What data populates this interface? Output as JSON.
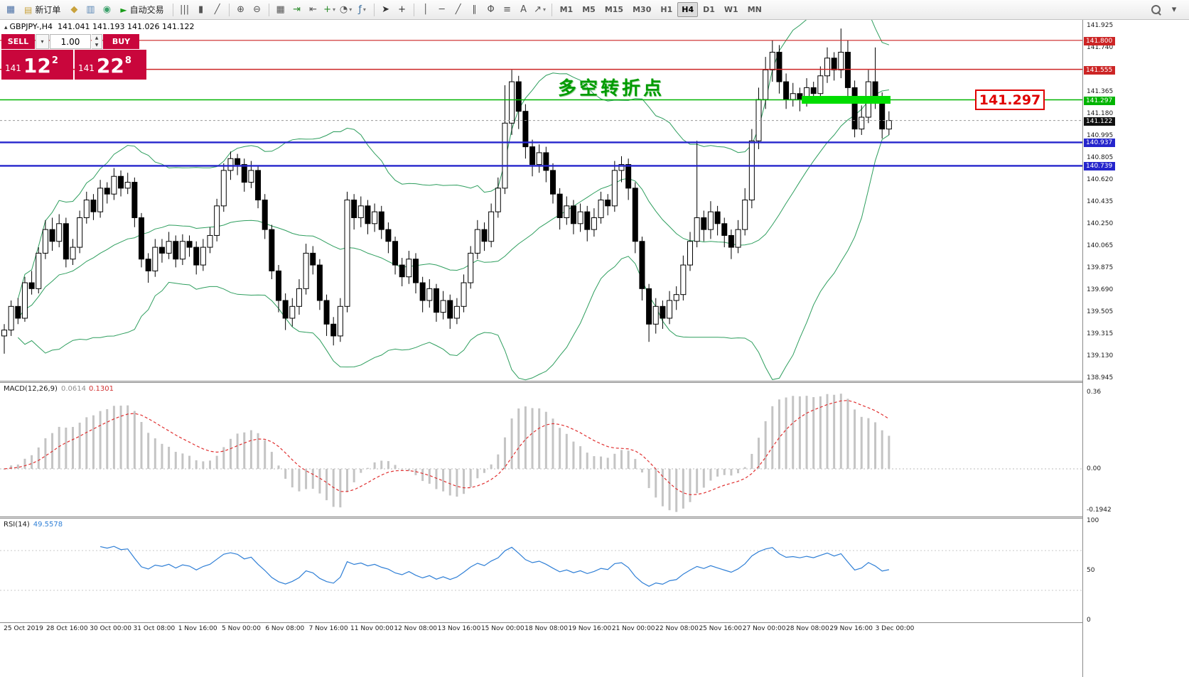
{
  "toolbar": {
    "items": [
      {
        "type": "icon",
        "name": "chart-window-icon",
        "glyph": "▦",
        "color": "#4a6fa5"
      },
      {
        "type": "button",
        "name": "new-order-button",
        "label": "新订单",
        "glyph": "▤",
        "color": "#c9a23c"
      },
      {
        "type": "icon",
        "name": "market-watch-icon",
        "glyph": "◆",
        "color": "#c9a23c"
      },
      {
        "type": "icon",
        "name": "data-window-icon",
        "glyph": "▥",
        "color": "#5b87b5"
      },
      {
        "type": "icon",
        "name": "strategy-tester-icon",
        "glyph": "◉",
        "color": "#3aa06a"
      },
      {
        "type": "button",
        "name": "autotrading-button",
        "label": "自动交易",
        "glyph": "►",
        "color": "#1a9c1a"
      },
      {
        "type": "sep"
      },
      {
        "type": "icon",
        "name": "bar-chart-icon",
        "glyph": "|||",
        "color": "#555555"
      },
      {
        "type": "icon",
        "name": "candlestick-chart-icon",
        "glyph": "▮",
        "color": "#555555"
      },
      {
        "type": "icon",
        "name": "line-chart-icon",
        "glyph": "╱",
        "color": "#555555"
      },
      {
        "type": "sep"
      },
      {
        "type": "icon",
        "name": "zoom-in-icon",
        "glyph": "⊕",
        "color": "#555555"
      },
      {
        "type": "icon",
        "name": "zoom-out-icon",
        "glyph": "⊖",
        "color": "#555555"
      },
      {
        "type": "sep"
      },
      {
        "type": "icon",
        "name": "tile-windows-icon",
        "glyph": "▦",
        "color": "#555555"
      },
      {
        "type": "icon",
        "name": "auto-scroll-icon",
        "glyph": "⇥",
        "color": "#2a8a2a"
      },
      {
        "type": "icon",
        "name": "chart-shift-icon",
        "glyph": "⇤",
        "color": "#555555"
      },
      {
        "type": "icon",
        "name": "new-chart-icon",
        "glyph": "+",
        "color": "#2a8a2a",
        "caret": true
      },
      {
        "type": "icon",
        "name": "profiles-icon",
        "glyph": "◔",
        "color": "#555555",
        "caret": true
      },
      {
        "type": "icon",
        "name": "indicators-icon",
        "glyph": "ƒ",
        "color": "#3a6fa0",
        "caret": true
      },
      {
        "type": "sep"
      },
      {
        "type": "icon",
        "name": "cursor-icon",
        "glyph": "➤",
        "color": "#333333"
      },
      {
        "type": "icon",
        "name": "crosshair-icon",
        "glyph": "+",
        "color": "#333333"
      },
      {
        "type": "sep"
      },
      {
        "type": "icon",
        "name": "vertical-line-icon",
        "glyph": "│",
        "color": "#555555"
      },
      {
        "type": "icon",
        "name": "horizontal-line-icon",
        "glyph": "─",
        "color": "#555555"
      },
      {
        "type": "icon",
        "name": "trendline-icon",
        "glyph": "╱",
        "color": "#555555"
      },
      {
        "type": "icon",
        "name": "channel-icon",
        "glyph": "∥",
        "color": "#555555"
      },
      {
        "type": "icon",
        "name": "fibonacci-icon",
        "glyph": "Φ",
        "color": "#555555"
      },
      {
        "type": "icon",
        "name": "shapes-icon",
        "glyph": "≡",
        "color": "#555555"
      },
      {
        "type": "icon",
        "name": "text-icon",
        "glyph": "A",
        "color": "#555555"
      },
      {
        "type": "icon",
        "name": "arrow-tools-icon",
        "glyph": "↗",
        "color": "#555555",
        "caret": true
      },
      {
        "type": "sep"
      },
      {
        "type": "tf",
        "name": "tf-m1",
        "label": "M1"
      },
      {
        "type": "tf",
        "name": "tf-m5",
        "label": "M5"
      },
      {
        "type": "tf",
        "name": "tf-m15",
        "label": "M15"
      },
      {
        "type": "tf",
        "name": "tf-m30",
        "label": "M30"
      },
      {
        "type": "tf",
        "name": "tf-h1",
        "label": "H1"
      },
      {
        "type": "tf",
        "name": "tf-h4",
        "label": "H4",
        "active": true
      },
      {
        "type": "tf",
        "name": "tf-d1",
        "label": "D1"
      },
      {
        "type": "tf",
        "name": "tf-w1",
        "label": "W1"
      },
      {
        "type": "tf",
        "name": "tf-mn",
        "label": "MN"
      }
    ],
    "right_items": [
      {
        "type": "icon",
        "name": "search-icon",
        "glyph": "",
        "css": "mag"
      },
      {
        "type": "icon",
        "name": "toolbar-overflow-icon",
        "glyph": "▾",
        "color": "#555555"
      }
    ]
  },
  "chart": {
    "symbol_icon": "▴",
    "title": "GBPJPY-,H4",
    "ohlc": "141.041 141.193 141.026 141.122"
  },
  "trade": {
    "sell_label": "SELL",
    "buy_label": "BUY",
    "volume": "1.00",
    "sell_caret": "▾",
    "stepper_up": "▲",
    "stepper_down": "▼",
    "sell_price": {
      "prefix": "141",
      "main": "12",
      "sup": "2"
    },
    "buy_price": {
      "prefix": "141",
      "main": "22",
      "sup": "8"
    }
  },
  "annotations": {
    "turning_point": "多空转折点",
    "price_box": "141.297"
  },
  "chart_data": {
    "type": "candlestick",
    "symbol": "GBPJPY-",
    "timeframe": "H4",
    "current_price": 141.122,
    "y_axis_ticks": [
      "141.925",
      "141.740",
      "141.555",
      "141.365",
      "141.180",
      "140.995",
      "140.805",
      "140.620",
      "140.435",
      "140.250",
      "140.065",
      "139.875",
      "139.690",
      "139.505",
      "139.315",
      "139.130",
      "138.945"
    ],
    "price_tags": [
      {
        "text": "141.800",
        "color": "#cc2525"
      },
      {
        "text": "141.555",
        "color": "#cc2525"
      },
      {
        "text": "141.297",
        "color": "#00b400"
      },
      {
        "text": "141.122",
        "color": "#101010"
      },
      {
        "text": "140.937",
        "color": "#2525cc"
      },
      {
        "text": "140.739",
        "color": "#2525cc"
      }
    ],
    "hlines": [
      {
        "price": 141.8,
        "color": "#cc2525",
        "width": 1.2
      },
      {
        "price": 141.555,
        "color": "#cc2525",
        "width": 1.5
      },
      {
        "price": 141.297,
        "color": "#00b400",
        "width": 1.5
      },
      {
        "price": 140.937,
        "color": "#2525cc",
        "width": 2.4
      },
      {
        "price": 140.739,
        "color": "#2525cc",
        "width": 2.4
      }
    ],
    "highlight_band": {
      "price": 141.297,
      "from_frac": 0.7407,
      "to_frac": 0.8227,
      "color": "#00dd00",
      "thickness": 11
    },
    "x_axis_labels": [
      "25 Oct 2019",
      "28 Oct 16:00",
      "30 Oct 00:00",
      "31 Oct 08:00",
      "1 Nov 16:00",
      "5 Nov 00:00",
      "6 Nov 08:00",
      "7 Nov 16:00",
      "11 Nov 00:00",
      "12 Nov 08:00",
      "13 Nov 16:00",
      "15 Nov 00:00",
      "18 Nov 08:00",
      "19 Nov 16:00",
      "21 Nov 00:00",
      "22 Nov 08:00",
      "25 Nov 16:00",
      "27 Nov 00:00",
      "28 Nov 08:00",
      "29 Nov 16:00",
      "3 Dec 00:00"
    ],
    "indicators": {
      "bollinger": {
        "period": 20,
        "deviation": 2,
        "color": "#2e9e5e"
      },
      "macd": {
        "label": "MACD(12,26,9)",
        "main": "0.0614",
        "signal": "0.1301",
        "axis": [
          "0.36",
          "0.00",
          "-0.1942"
        ],
        "histogram_color": "#c4c4c4",
        "signal_color": "#e03030"
      },
      "rsi": {
        "label": "RSI(14)",
        "value": "49.5578",
        "axis": [
          "100",
          "50",
          "0"
        ],
        "line_color": "#2f7fd6"
      }
    },
    "candles": [
      [
        139.3,
        139.4,
        139.15,
        139.35
      ],
      [
        139.35,
        139.6,
        139.3,
        139.55
      ],
      [
        139.55,
        139.62,
        139.4,
        139.45
      ],
      [
        139.45,
        139.8,
        139.42,
        139.75
      ],
      [
        139.75,
        139.85,
        139.65,
        139.7
      ],
      [
        139.7,
        140.05,
        139.66,
        140.0
      ],
      [
        140.0,
        140.28,
        139.95,
        140.2
      ],
      [
        140.2,
        140.3,
        140.02,
        140.1
      ],
      [
        140.1,
        140.33,
        140.05,
        140.25
      ],
      [
        140.25,
        140.3,
        139.88,
        139.95
      ],
      [
        139.95,
        140.12,
        139.9,
        140.05
      ],
      [
        140.05,
        140.36,
        140.0,
        140.3
      ],
      [
        140.3,
        140.52,
        140.25,
        140.45
      ],
      [
        140.45,
        140.5,
        140.28,
        140.35
      ],
      [
        140.35,
        140.62,
        140.3,
        140.55
      ],
      [
        140.55,
        140.6,
        140.42,
        140.5
      ],
      [
        140.5,
        140.72,
        140.45,
        140.65
      ],
      [
        140.65,
        140.7,
        140.48,
        140.55
      ],
      [
        140.55,
        140.68,
        140.5,
        140.6
      ],
      [
        140.6,
        140.64,
        140.22,
        140.3
      ],
      [
        140.3,
        140.34,
        139.88,
        139.95
      ],
      [
        139.95,
        140.0,
        139.75,
        139.85
      ],
      [
        139.85,
        140.12,
        139.8,
        140.05
      ],
      [
        140.05,
        140.12,
        139.92,
        140.0
      ],
      [
        140.0,
        140.18,
        139.95,
        140.1
      ],
      [
        140.1,
        140.15,
        139.88,
        139.95
      ],
      [
        139.95,
        140.16,
        139.9,
        140.1
      ],
      [
        140.1,
        140.15,
        139.97,
        140.05
      ],
      [
        140.05,
        140.1,
        139.82,
        139.9
      ],
      [
        139.9,
        140.12,
        139.85,
        140.05
      ],
      [
        140.05,
        140.22,
        140.0,
        140.15
      ],
      [
        140.15,
        140.46,
        140.1,
        140.4
      ],
      [
        140.4,
        140.76,
        140.35,
        140.7
      ],
      [
        140.7,
        140.86,
        140.62,
        140.8
      ],
      [
        140.8,
        140.84,
        140.66,
        140.75
      ],
      [
        140.75,
        140.8,
        140.52,
        140.6
      ],
      [
        140.6,
        140.78,
        140.55,
        140.7
      ],
      [
        140.7,
        140.74,
        140.38,
        140.45
      ],
      [
        140.45,
        140.5,
        140.12,
        140.2
      ],
      [
        140.2,
        140.24,
        139.78,
        139.85
      ],
      [
        139.85,
        139.9,
        139.5,
        139.6
      ],
      [
        139.6,
        139.66,
        139.35,
        139.45
      ],
      [
        139.45,
        139.62,
        139.38,
        139.55
      ],
      [
        139.55,
        139.78,
        139.48,
        139.7
      ],
      [
        139.7,
        140.08,
        139.65,
        140.0
      ],
      [
        140.0,
        140.06,
        139.82,
        139.9
      ],
      [
        139.9,
        139.95,
        139.52,
        139.6
      ],
      [
        139.6,
        139.65,
        139.3,
        139.4
      ],
      [
        139.4,
        139.46,
        139.22,
        139.3
      ],
      [
        139.3,
        139.62,
        139.25,
        139.55
      ],
      [
        139.55,
        140.52,
        139.5,
        140.45
      ],
      [
        140.45,
        140.5,
        140.2,
        140.3
      ],
      [
        140.3,
        140.48,
        140.22,
        140.4
      ],
      [
        140.4,
        140.45,
        140.16,
        140.25
      ],
      [
        140.25,
        140.42,
        140.18,
        140.35
      ],
      [
        140.35,
        140.4,
        140.12,
        140.2
      ],
      [
        140.2,
        140.26,
        140.0,
        140.1
      ],
      [
        140.1,
        140.14,
        139.82,
        139.9
      ],
      [
        139.9,
        139.96,
        139.72,
        139.8
      ],
      [
        139.8,
        140.02,
        139.74,
        139.95
      ],
      [
        139.95,
        140.0,
        139.66,
        139.75
      ],
      [
        139.75,
        139.8,
        139.5,
        139.6
      ],
      [
        139.6,
        139.78,
        139.54,
        139.7
      ],
      [
        139.7,
        139.74,
        139.42,
        139.5
      ],
      [
        139.5,
        139.68,
        139.44,
        139.6
      ],
      [
        139.6,
        139.65,
        139.36,
        139.45
      ],
      [
        139.45,
        139.62,
        139.4,
        139.55
      ],
      [
        139.55,
        139.82,
        139.5,
        139.75
      ],
      [
        139.75,
        140.06,
        139.7,
        140.0
      ],
      [
        140.0,
        140.28,
        139.95,
        140.2
      ],
      [
        140.2,
        140.26,
        140.02,
        140.1
      ],
      [
        140.1,
        140.42,
        140.05,
        140.35
      ],
      [
        140.35,
        140.64,
        140.3,
        140.55
      ],
      [
        140.55,
        141.42,
        140.5,
        141.1
      ],
      [
        141.1,
        141.55,
        141.0,
        141.45
      ],
      [
        141.45,
        141.5,
        141.05,
        141.2
      ],
      [
        141.2,
        141.26,
        140.8,
        140.9
      ],
      [
        140.9,
        140.96,
        140.65,
        140.75
      ],
      [
        140.75,
        140.92,
        140.68,
        140.85
      ],
      [
        140.85,
        140.9,
        140.6,
        140.7
      ],
      [
        140.7,
        140.76,
        140.42,
        140.5
      ],
      [
        140.5,
        140.55,
        140.2,
        140.3
      ],
      [
        140.3,
        140.48,
        140.24,
        140.4
      ],
      [
        140.4,
        140.45,
        140.16,
        140.25
      ],
      [
        140.25,
        140.42,
        140.18,
        140.35
      ],
      [
        140.35,
        140.4,
        140.1,
        140.2
      ],
      [
        140.2,
        140.38,
        140.14,
        140.3
      ],
      [
        140.3,
        140.52,
        140.25,
        140.45
      ],
      [
        140.45,
        140.5,
        140.32,
        140.4
      ],
      [
        140.4,
        140.78,
        140.35,
        140.7
      ],
      [
        140.7,
        140.82,
        140.6,
        140.75
      ],
      [
        140.75,
        140.8,
        140.45,
        140.55
      ],
      [
        140.55,
        140.6,
        140.0,
        140.1
      ],
      [
        140.1,
        140.14,
        139.6,
        139.7
      ],
      [
        139.7,
        139.74,
        139.25,
        139.4
      ],
      [
        139.4,
        139.62,
        139.32,
        139.55
      ],
      [
        139.55,
        139.6,
        139.36,
        139.45
      ],
      [
        139.45,
        139.68,
        139.4,
        139.6
      ],
      [
        139.6,
        139.72,
        139.52,
        139.65
      ],
      [
        139.65,
        139.98,
        139.6,
        139.9
      ],
      [
        139.9,
        140.18,
        139.85,
        140.1
      ],
      [
        140.1,
        140.95,
        140.05,
        140.3
      ],
      [
        140.3,
        140.36,
        140.1,
        140.2
      ],
      [
        140.2,
        140.44,
        140.12,
        140.35
      ],
      [
        140.35,
        140.4,
        140.15,
        140.25
      ],
      [
        140.25,
        140.3,
        140.05,
        140.15
      ],
      [
        140.15,
        140.2,
        139.95,
        140.05
      ],
      [
        140.05,
        140.28,
        140.0,
        140.2
      ],
      [
        140.2,
        140.55,
        140.15,
        140.45
      ],
      [
        140.45,
        141.05,
        140.38,
        140.95
      ],
      [
        140.95,
        141.4,
        140.88,
        141.3
      ],
      [
        141.3,
        141.66,
        141.22,
        141.55
      ],
      [
        141.55,
        141.8,
        141.45,
        141.7
      ],
      [
        141.7,
        141.76,
        141.35,
        141.45
      ],
      [
        141.45,
        141.52,
        141.22,
        141.3
      ],
      [
        141.3,
        141.44,
        141.24,
        141.35
      ],
      [
        141.35,
        141.4,
        141.2,
        141.3
      ],
      [
        141.3,
        141.48,
        141.24,
        141.4
      ],
      [
        141.4,
        141.45,
        141.28,
        141.35
      ],
      [
        141.35,
        141.58,
        141.3,
        141.5
      ],
      [
        141.5,
        141.74,
        141.44,
        141.65
      ],
      [
        141.65,
        141.7,
        141.46,
        141.55
      ],
      [
        141.55,
        141.9,
        141.48,
        141.7
      ],
      [
        141.7,
        141.8,
        141.3,
        141.4
      ],
      [
        141.4,
        141.46,
        140.98,
        141.05
      ],
      [
        141.05,
        141.25,
        141.0,
        141.15
      ],
      [
        141.15,
        141.55,
        141.1,
        141.45
      ],
      [
        141.45,
        141.74,
        141.22,
        141.3
      ],
      [
        141.3,
        141.36,
        140.97,
        141.05
      ],
      [
        141.05,
        141.2,
        141.0,
        141.122
      ]
    ]
  }
}
